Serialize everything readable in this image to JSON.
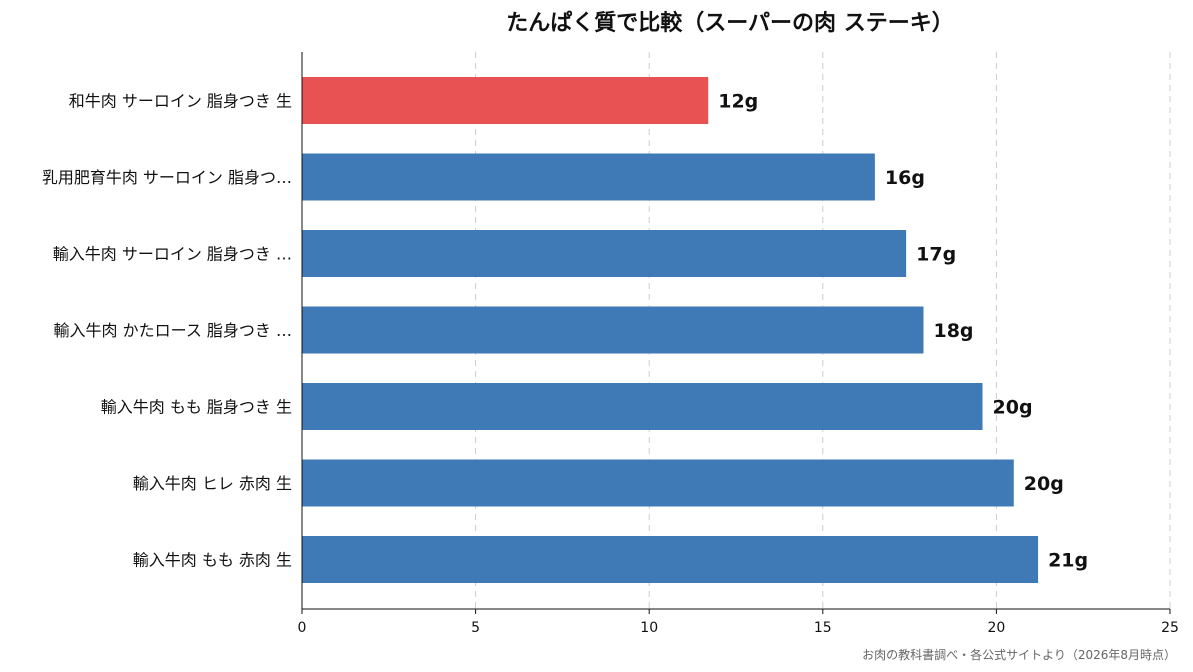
{
  "chart_data": {
    "type": "bar",
    "orientation": "horizontal",
    "title": "たんぱく質で比較（スーパーの肉 ステーキ）",
    "categories": [
      "和牛肉 サーロイン 脂身つき 生",
      "乳用肥育牛肉 サーロイン 脂身つ…",
      "輸入牛肉 サーロイン 脂身つき …",
      "輸入牛肉 かたロース 脂身つき …",
      "輸入牛肉 もも 脂身つき 生",
      "輸入牛肉 ヒレ 赤肉 生",
      "輸入牛肉 もも 赤肉 生"
    ],
    "values": [
      11.7,
      16.5,
      17.4,
      17.9,
      19.6,
      20.5,
      21.2
    ],
    "value_labels": [
      "12g",
      "16g",
      "17g",
      "18g",
      "20g",
      "20g",
      "21g"
    ],
    "highlight_index": 0,
    "colors": {
      "bar": "#3f7ab6",
      "highlight": "#e85253"
    },
    "xlim": [
      0,
      25
    ],
    "xticks": [
      "0",
      "5",
      "10",
      "15",
      "20",
      "25"
    ],
    "xtick_values": [
      0,
      5,
      10,
      15,
      20,
      25
    ],
    "grid": "x-dashed",
    "xlabel": "",
    "ylabel": "",
    "source": "お肉の教科書調べ・各公式サイトより（2026年8月時点）"
  }
}
